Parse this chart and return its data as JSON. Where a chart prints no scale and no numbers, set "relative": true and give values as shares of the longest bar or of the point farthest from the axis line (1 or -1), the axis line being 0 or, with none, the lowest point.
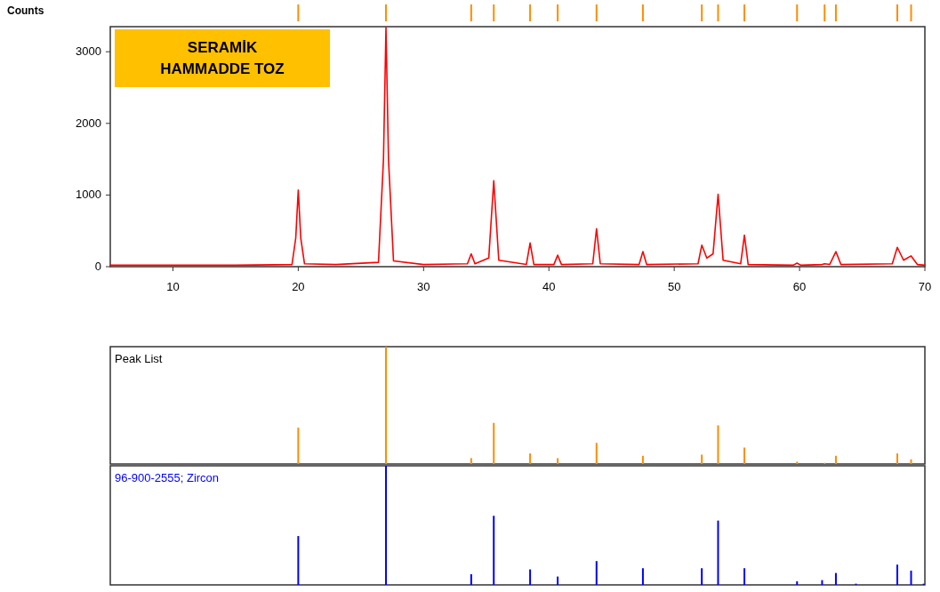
{
  "chart_data": [
    {
      "type": "line",
      "ylabel": "Counts",
      "xlim": [
        5,
        70
      ],
      "ylim": [
        0,
        3350
      ],
      "xticks": [
        10,
        20,
        30,
        40,
        50,
        60,
        70
      ],
      "yticks": [
        0,
        1000,
        2000,
        3000
      ],
      "annotations": [
        "SERAMİK HAMMADDE TOZ"
      ],
      "series": [
        {
          "color": "#ff0000",
          "x": [
            5,
            10,
            15,
            19.5,
            19.8,
            20.0,
            20.2,
            20.5,
            23,
            26.4,
            26.8,
            27.0,
            27.2,
            27.6,
            30,
            33.5,
            33.8,
            34.1,
            35.2,
            35.6,
            36.0,
            38.2,
            38.5,
            38.8,
            40.4,
            40.7,
            41.0,
            43.5,
            43.8,
            44.1,
            47.2,
            47.5,
            47.8,
            51.9,
            52.2,
            52.6,
            53.1,
            53.5,
            53.9,
            55.3,
            55.6,
            55.9,
            59.5,
            59.8,
            60.1,
            61.8,
            62.0,
            62.4,
            62.9,
            63.3,
            67.4,
            67.8,
            68.3,
            68.9,
            69.4,
            70
          ],
          "values": [
            20,
            20,
            20,
            30,
            400,
            1070,
            400,
            40,
            30,
            60,
            1500,
            3340,
            1500,
            80,
            30,
            40,
            180,
            40,
            120,
            1200,
            90,
            30,
            330,
            30,
            30,
            160,
            30,
            40,
            530,
            40,
            30,
            210,
            30,
            40,
            300,
            120,
            180,
            1010,
            90,
            40,
            440,
            30,
            20,
            50,
            20,
            30,
            40,
            30,
            210,
            30,
            40,
            270,
            90,
            150,
            30,
            20
          ]
        }
      ]
    },
    {
      "type": "bar",
      "title": "Peak List",
      "relative": true,
      "xlim": [
        5,
        70
      ],
      "x": [
        20.0,
        27.0,
        33.8,
        35.6,
        38.5,
        40.7,
        43.8,
        47.5,
        52.2,
        53.5,
        55.6,
        59.8,
        62.0,
        62.9,
        67.8,
        68.9
      ],
      "series": [
        {
          "color": "#ff8c00",
          "values": [
            0.31,
            1,
            0.05,
            0.35,
            0.09,
            0.05,
            0.18,
            0.07,
            0.08,
            0.33,
            0.14,
            0.02,
            0.01,
            0.07,
            0.09,
            0.04
          ]
        }
      ]
    },
    {
      "type": "bar",
      "title": "96-900-2555; Zircon",
      "relative": true,
      "xlim": [
        5,
        70
      ],
      "x": [
        20.0,
        27.0,
        33.8,
        35.6,
        38.5,
        40.7,
        43.8,
        47.5,
        52.2,
        53.5,
        55.6,
        59.8,
        61.8,
        62.9,
        64.5,
        67.8,
        68.9,
        69.9
      ],
      "series": [
        {
          "color": "#0000ff",
          "values": [
            0.41,
            1,
            0.09,
            0.58,
            0.13,
            0.07,
            0.2,
            0.14,
            0.14,
            0.54,
            0.14,
            0.03,
            0.04,
            0.1,
            0.01,
            0.17,
            0.12,
            0.01
          ]
        }
      ]
    }
  ]
}
